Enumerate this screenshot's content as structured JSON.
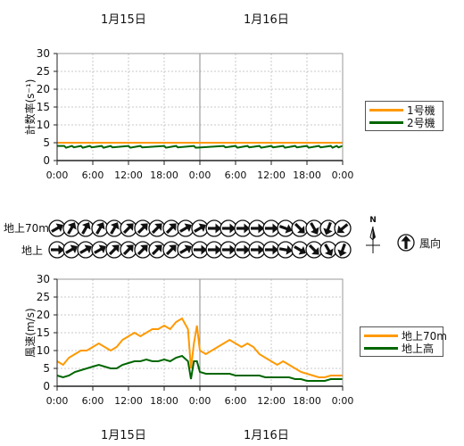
{
  "dates": {
    "top": [
      "1月15日",
      "1月16日"
    ],
    "bottom": [
      "1月15日",
      "1月16日"
    ]
  },
  "direction": {
    "row_labels": [
      "地上70m",
      "地上"
    ],
    "north_label": "N",
    "legend_label": "風向",
    "upper_70m_deg": [
      60,
      30,
      30,
      30,
      30,
      45,
      45,
      45,
      45,
      60,
      60,
      90,
      90,
      90,
      90,
      90,
      110,
      135,
      150,
      200,
      230
    ],
    "ground_deg": [
      90,
      60,
      60,
      60,
      45,
      45,
      45,
      45,
      45,
      60,
      90,
      90,
      90,
      90,
      90,
      90,
      100,
      120,
      135,
      150,
      200
    ]
  },
  "chart_data": [
    {
      "type": "line",
      "title": "",
      "ylabel": "計数率(s⁻¹)",
      "ylim": [
        0,
        30
      ],
      "yticks": [
        0,
        5,
        10,
        15,
        20,
        25,
        30
      ],
      "x_ticks": [
        "0:00",
        "6:00",
        "12:00",
        "18:00",
        "0:00",
        "6:00",
        "12:00",
        "18:00",
        "0:00"
      ],
      "grid": true,
      "legend_position": "right",
      "series": [
        {
          "name": "1号機",
          "color": "#ff9900",
          "hours": [
            0,
            48
          ],
          "values": [
            5.0,
            5.0
          ]
        },
        {
          "name": "2号機",
          "color": "#006600",
          "hours": [
            0,
            1.2,
            1.5,
            2.5,
            2.8,
            4,
            4.3,
            5.5,
            5.8,
            7.5,
            7.8,
            9,
            9.3,
            12,
            12.3,
            14,
            14.3,
            18,
            18.3,
            20,
            20.3,
            23,
            23.3,
            28,
            28.3,
            30,
            30.3,
            32,
            32.3,
            34,
            34.3,
            36,
            36.3,
            38,
            38.3,
            40,
            40.3,
            42,
            42.3,
            44,
            44.3,
            46,
            46.3,
            47,
            47.3,
            48
          ],
          "values": [
            4.1,
            4.1,
            3.6,
            4.1,
            3.7,
            4.1,
            3.6,
            4.1,
            3.7,
            4.1,
            3.6,
            4.1,
            3.7,
            4.1,
            3.6,
            4.1,
            3.7,
            4.1,
            3.6,
            4.1,
            3.7,
            4.1,
            3.6,
            4.1,
            3.7,
            4.1,
            3.6,
            4.1,
            3.7,
            4.1,
            3.6,
            4.1,
            3.7,
            4.1,
            3.6,
            4.1,
            3.7,
            4.1,
            3.6,
            4.1,
            3.7,
            4.1,
            3.6,
            4.1,
            3.7,
            4.1
          ]
        }
      ]
    },
    {
      "type": "line",
      "title": "",
      "ylabel": "風速(m/s)",
      "ylim": [
        0,
        30
      ],
      "yticks": [
        0,
        5,
        10,
        15,
        20,
        25,
        30
      ],
      "x_ticks": [
        "0:00",
        "6:00",
        "12:00",
        "18:00",
        "0:00",
        "6:00",
        "12:00",
        "18:00",
        "0:00"
      ],
      "grid": true,
      "legend_position": "right",
      "series": [
        {
          "name": "地上70m",
          "color": "#ff9900",
          "hours": [
            0,
            1,
            2,
            3,
            4,
            5,
            6,
            7,
            8,
            9,
            10,
            11,
            12,
            13,
            14,
            15,
            16,
            17,
            18,
            19,
            20,
            21,
            22,
            22.5,
            23,
            23.5,
            24,
            25,
            26,
            27,
            28,
            29,
            30,
            31,
            32,
            33,
            34,
            35,
            36,
            37,
            38,
            39,
            40,
            41,
            42,
            43,
            44,
            45,
            46,
            47,
            48
          ],
          "values": [
            7,
            6,
            8,
            9,
            10,
            10,
            11,
            12,
            11,
            10,
            11,
            13,
            14,
            15,
            14,
            15,
            16,
            16,
            17,
            16,
            18,
            19,
            16,
            5,
            12,
            17,
            10,
            9,
            10,
            11,
            12,
            13,
            12,
            11,
            12,
            11,
            9,
            8,
            7,
            6,
            7,
            6,
            5,
            4,
            3.5,
            3,
            2.5,
            2.5,
            3,
            3,
            3
          ]
        },
        {
          "name": "地上高",
          "color": "#006600",
          "hours": [
            0,
            1,
            2,
            3,
            4,
            5,
            6,
            7,
            8,
            9,
            10,
            11,
            12,
            13,
            14,
            15,
            16,
            17,
            18,
            19,
            20,
            21,
            22,
            22.5,
            23,
            23.5,
            24,
            25,
            26,
            27,
            28,
            29,
            30,
            31,
            32,
            33,
            34,
            35,
            36,
            37,
            38,
            39,
            40,
            41,
            42,
            43,
            44,
            45,
            46,
            47,
            48
          ],
          "values": [
            3,
            2.5,
            3,
            4,
            4.5,
            5,
            5.5,
            6,
            5.5,
            5,
            5,
            6,
            6.5,
            7,
            7,
            7.5,
            7,
            7,
            7.5,
            7,
            8,
            8.5,
            7,
            2,
            7,
            7,
            4,
            3.5,
            3.5,
            3.5,
            3.5,
            3.5,
            3,
            3,
            3,
            3,
            3,
            2.5,
            2.5,
            2.5,
            2.5,
            2.5,
            2,
            2,
            1.5,
            1.5,
            1.5,
            1.5,
            2,
            2,
            2
          ]
        }
      ]
    }
  ]
}
